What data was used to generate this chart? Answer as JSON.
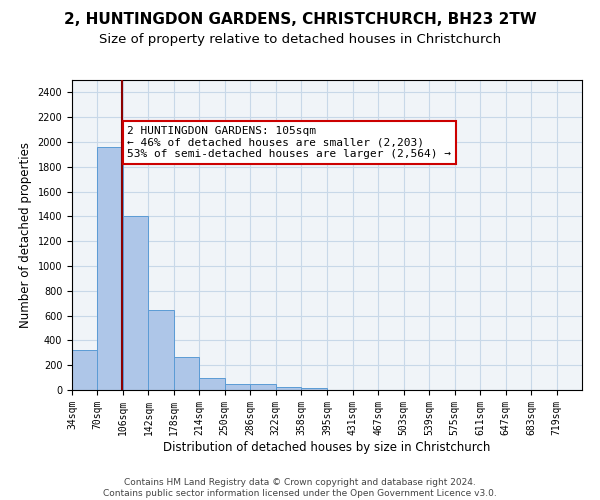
{
  "title": "2, HUNTINGDON GARDENS, CHRISTCHURCH, BH23 2TW",
  "subtitle": "Size of property relative to detached houses in Christchurch",
  "xlabel": "Distribution of detached houses by size in Christchurch",
  "ylabel": "Number of detached properties",
  "bar_edges": [
    34,
    70,
    106,
    142,
    178,
    214,
    250,
    286,
    322,
    358,
    395,
    431,
    467,
    503,
    539,
    575,
    611,
    647,
    683,
    719,
    755
  ],
  "bar_heights": [
    325,
    1960,
    1400,
    645,
    270,
    100,
    45,
    45,
    25,
    18,
    0,
    0,
    0,
    0,
    0,
    0,
    0,
    0,
    0,
    0
  ],
  "bar_color": "#aec6e8",
  "bar_edge_color": "#5b9bd5",
  "property_size": 105,
  "property_line_color": "#8b0000",
  "annotation_text": "2 HUNTINGDON GARDENS: 105sqm\n← 46% of detached houses are smaller (2,203)\n53% of semi-detached houses are larger (2,564) →",
  "annotation_box_color": "#ffffff",
  "annotation_border_color": "#cc0000",
  "ylim": [
    0,
    2500
  ],
  "yticks": [
    0,
    200,
    400,
    600,
    800,
    1000,
    1200,
    1400,
    1600,
    1800,
    2000,
    2200,
    2400
  ],
  "grid_color": "#c8d8e8",
  "background_color": "#f0f4f8",
  "footer_text": "Contains HM Land Registry data © Crown copyright and database right 2024.\nContains public sector information licensed under the Open Government Licence v3.0.",
  "title_fontsize": 11,
  "subtitle_fontsize": 9.5,
  "axis_label_fontsize": 8.5,
  "tick_fontsize": 7,
  "annotation_fontsize": 8,
  "footer_fontsize": 6.5
}
